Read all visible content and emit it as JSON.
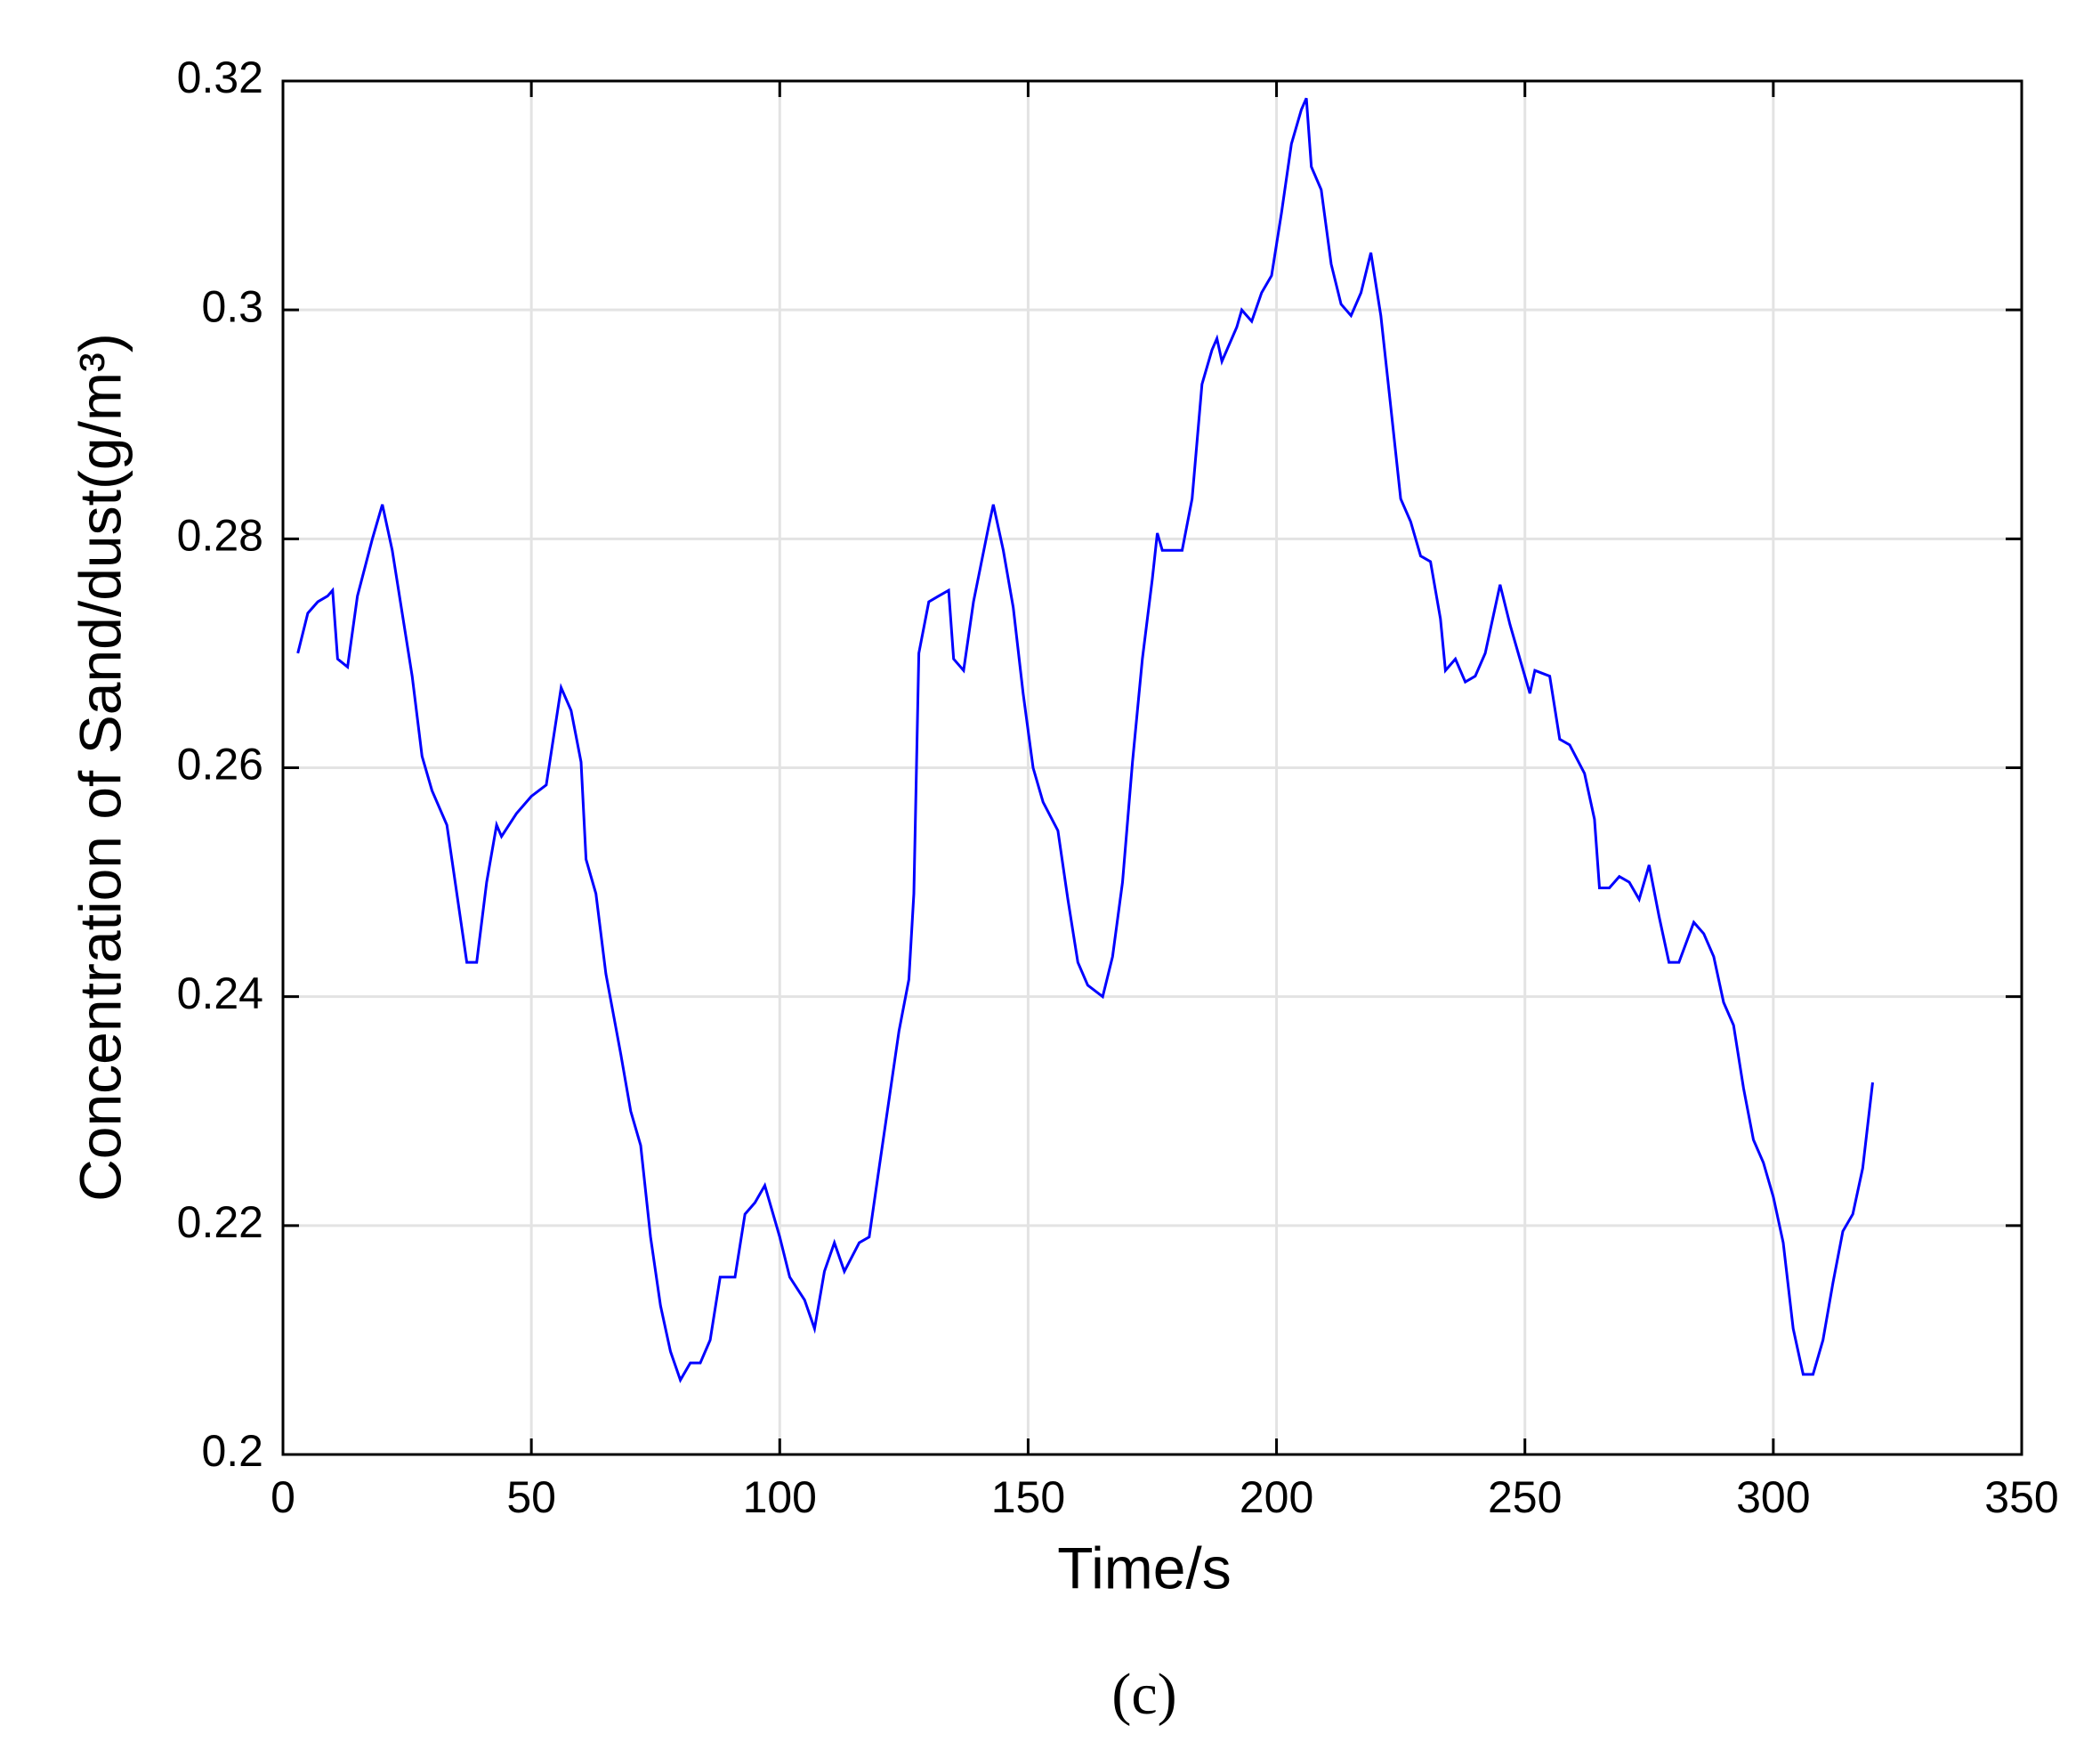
{
  "chart_data": {
    "type": "line",
    "x_label": "Time/s",
    "y_label": "Concentration of Sand/dust(g/m³)",
    "caption": "(c)",
    "xlim": [
      0,
      350
    ],
    "xticks": [
      0,
      50,
      100,
      150,
      200,
      250,
      300,
      350
    ],
    "ylim": [
      0.2,
      0.32
    ],
    "yticks": [
      0.2,
      0.22,
      0.24,
      0.26,
      0.28,
      0.3,
      0.32
    ],
    "grid": true,
    "series": [
      {
        "color": "#0000ff",
        "x": [
          3,
          5,
          7,
          9,
          10,
          11,
          13,
          15,
          18,
          20,
          22,
          24,
          26,
          28,
          30,
          33,
          35,
          37,
          39,
          41,
          43,
          44,
          47,
          50,
          53,
          56,
          58,
          60,
          61,
          63,
          65,
          68,
          70,
          72,
          74,
          76,
          78,
          80,
          82,
          84,
          86,
          88,
          91,
          93,
          95,
          97,
          100,
          102,
          105,
          107,
          109,
          111,
          113,
          116,
          118,
          120,
          122,
          124,
          126,
          127,
          128,
          130,
          132,
          134,
          135,
          137,
          139,
          142,
          143,
          145,
          147,
          149,
          151,
          153,
          156,
          158,
          160,
          162,
          165,
          167,
          169,
          171,
          173,
          175,
          176,
          177,
          181,
          183,
          185,
          187,
          188,
          189,
          192,
          193,
          195,
          197,
          199,
          201,
          203,
          205,
          206,
          207,
          209,
          211,
          213,
          215,
          217,
          219,
          221,
          223,
          225,
          227,
          229,
          231,
          233,
          234,
          236,
          238,
          240,
          242,
          245,
          247,
          249,
          251,
          252,
          255,
          257,
          259,
          262,
          264,
          265,
          267,
          269,
          271,
          273,
          275,
          277,
          279,
          281,
          284,
          286,
          288,
          290,
          292,
          294,
          296,
          298,
          300,
          302,
          304,
          306,
          308,
          310,
          312,
          314,
          316,
          318,
          320
        ],
        "values": [
          0.27,
          0.2735,
          0.2745,
          0.275,
          0.2755,
          0.2695,
          0.2688,
          0.275,
          0.28,
          0.283,
          0.279,
          0.2735,
          0.268,
          0.261,
          0.258,
          0.255,
          0.249,
          0.243,
          0.243,
          0.25,
          0.255,
          0.254,
          0.256,
          0.2575,
          0.2585,
          0.267,
          0.265,
          0.2605,
          0.252,
          0.249,
          0.242,
          0.235,
          0.23,
          0.227,
          0.219,
          0.213,
          0.209,
          0.2065,
          0.208,
          0.208,
          0.21,
          0.2155,
          0.2155,
          0.221,
          0.222,
          0.2235,
          0.219,
          0.2155,
          0.2135,
          0.211,
          0.216,
          0.2185,
          0.216,
          0.2185,
          0.219,
          0.225,
          0.231,
          0.237,
          0.2415,
          0.249,
          0.27,
          0.2745,
          0.275,
          0.2755,
          0.2695,
          0.2685,
          0.2745,
          0.281,
          0.283,
          0.279,
          0.274,
          0.2665,
          0.26,
          0.257,
          0.2545,
          0.2485,
          0.243,
          0.241,
          0.24,
          0.2435,
          0.25,
          0.2605,
          0.2695,
          0.2765,
          0.2805,
          0.279,
          0.279,
          0.2835,
          0.2935,
          0.2965,
          0.2975,
          0.2955,
          0.2985,
          0.3,
          0.299,
          0.3015,
          0.303,
          0.3085,
          0.3145,
          0.3175,
          0.3185,
          0.3125,
          0.3105,
          0.304,
          0.3005,
          0.2995,
          0.3015,
          0.305,
          0.2995,
          0.2915,
          0.2835,
          0.2815,
          0.2785,
          0.278,
          0.273,
          0.2685,
          0.2695,
          0.2675,
          0.268,
          0.27,
          0.276,
          0.2725,
          0.2695,
          0.2665,
          0.2685,
          0.268,
          0.2625,
          0.262,
          0.2595,
          0.2555,
          0.2495,
          0.2495,
          0.2505,
          0.25,
          0.2485,
          0.2515,
          0.247,
          0.243,
          0.243,
          0.2465,
          0.2455,
          0.2435,
          0.2395,
          0.2375,
          0.232,
          0.2275,
          0.2255,
          0.2225,
          0.2185,
          0.211,
          0.207,
          0.207,
          0.21,
          0.215,
          0.2195,
          0.221,
          0.225,
          0.2325
        ]
      }
    ]
  }
}
